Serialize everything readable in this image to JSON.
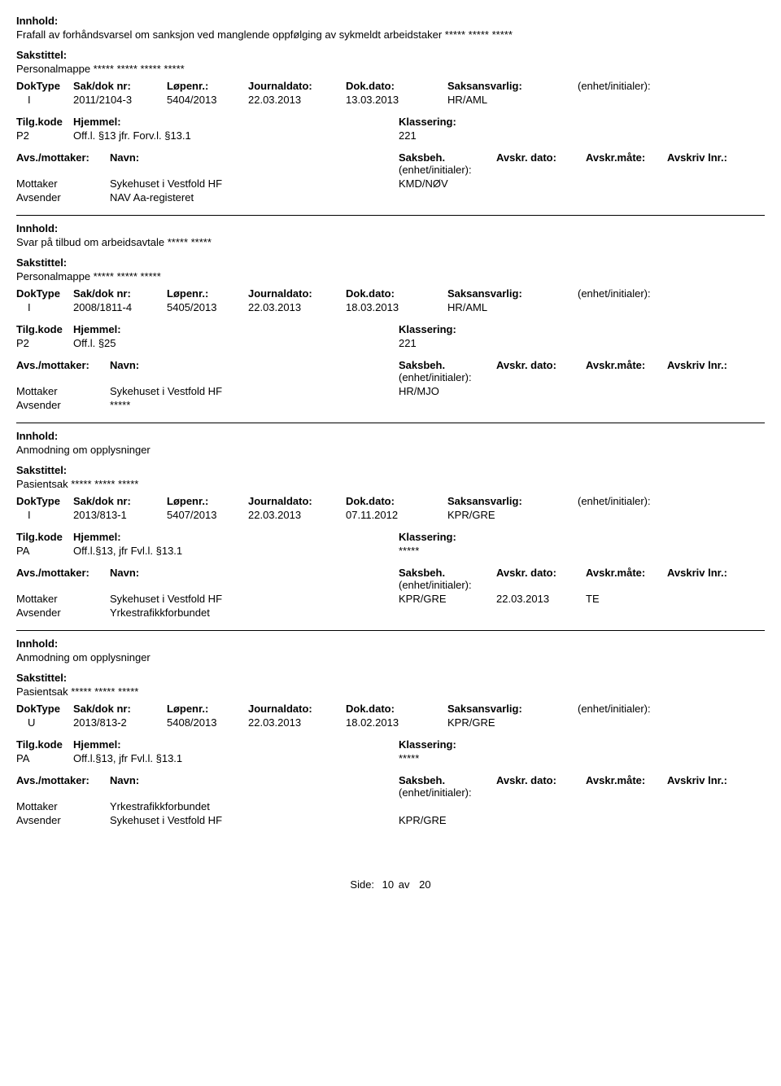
{
  "labels": {
    "innhold": "Innhold:",
    "sakstittel": "Sakstittel:",
    "doktype": "DokType",
    "sakdok": "Sak/dok nr:",
    "lopenr": "Løpenr.:",
    "journaldato": "Journaldato:",
    "dokdato": "Dok.dato:",
    "saksansvarlig": "Saksansvarlig:",
    "enhetinit": "(enhet/initialer):",
    "tilgkode": "Tilg.kode",
    "hjemmel": "Hjemmel:",
    "klassering": "Klassering:",
    "avsmottaker": "Avs./mottaker:",
    "navn": "Navn:",
    "saksbeh": "Saksbeh.",
    "saksbeh_suffix": "(enhet/initialer):",
    "avskrdato": "Avskr. dato:",
    "avskrmate": "Avskr.måte:",
    "avskrivlnr": "Avskriv lnr.:",
    "mottaker": "Mottaker",
    "avsender": "Avsender"
  },
  "records": [
    {
      "innhold": "Frafall av forhåndsvarsel om sanksjon ved manglende oppfølging av sykmeldt arbeidstaker ***** ***** *****",
      "sakstittel": "Personalmappe ***** ***** ***** *****",
      "doktype": "I",
      "sakdok": "2011/2104-3",
      "lopenr": "5404/2013",
      "journaldato": "22.03.2013",
      "dokdato": "13.03.2013",
      "saksansvarlig": "HR/AML",
      "enhetinit": "",
      "tilgkode": "P2",
      "hjemmel": "Off.l. §13 jfr. Forv.l. §13.1",
      "klassering": "221",
      "mottaker_navn": "Sykehuset i Vestfold HF",
      "saksbeh": "KMD/NØV",
      "avskrdato": "",
      "avskrmate": "",
      "avsender_navn": "NAV Aa-registeret",
      "avsender_sb": ""
    },
    {
      "innhold": "Svar på tilbud om arbeidsavtale ***** *****",
      "sakstittel": "Personalmappe ***** ***** *****",
      "doktype": "I",
      "sakdok": "2008/1811-4",
      "lopenr": "5405/2013",
      "journaldato": "22.03.2013",
      "dokdato": "18.03.2013",
      "saksansvarlig": "HR/AML",
      "enhetinit": "",
      "tilgkode": "P2",
      "hjemmel": "Off.l. §25",
      "klassering": "221",
      "mottaker_navn": "Sykehuset i Vestfold HF",
      "saksbeh": "HR/MJO",
      "avskrdato": "",
      "avskrmate": "",
      "avsender_navn": "*****",
      "avsender_sb": ""
    },
    {
      "innhold": "Anmodning om opplysninger",
      "sakstittel": "Pasientsak ***** ***** *****",
      "doktype": "I",
      "sakdok": "2013/813-1",
      "lopenr": "5407/2013",
      "journaldato": "22.03.2013",
      "dokdato": "07.11.2012",
      "saksansvarlig": "KPR/GRE",
      "enhetinit": "",
      "tilgkode": "PA",
      "hjemmel": "Off.l.§13, jfr Fvl.l. §13.1",
      "klassering": "*****",
      "mottaker_navn": "Sykehuset i Vestfold HF",
      "saksbeh": "KPR/GRE",
      "avskrdato": "22.03.2013",
      "avskrmate": "TE",
      "avsender_navn": "Yrkestrafikkforbundet",
      "avsender_sb": ""
    },
    {
      "innhold": "Anmodning om opplysninger",
      "sakstittel": "Pasientsak ***** ***** *****",
      "doktype": "U",
      "sakdok": "2013/813-2",
      "lopenr": "5408/2013",
      "journaldato": "22.03.2013",
      "dokdato": "18.02.2013",
      "saksansvarlig": "KPR/GRE",
      "enhetinit": "",
      "tilgkode": "PA",
      "hjemmel": "Off.l.§13, jfr Fvl.l. §13.1",
      "klassering": "*****",
      "mottaker_navn": "Yrkestrafikkforbundet",
      "saksbeh": "",
      "avskrdato": "",
      "avskrmate": "",
      "avsender_navn": "Sykehuset i Vestfold HF",
      "avsender_sb": "KPR/GRE"
    }
  ],
  "footer": {
    "side": "Side:",
    "page": "10",
    "av": "av",
    "total": "20"
  }
}
